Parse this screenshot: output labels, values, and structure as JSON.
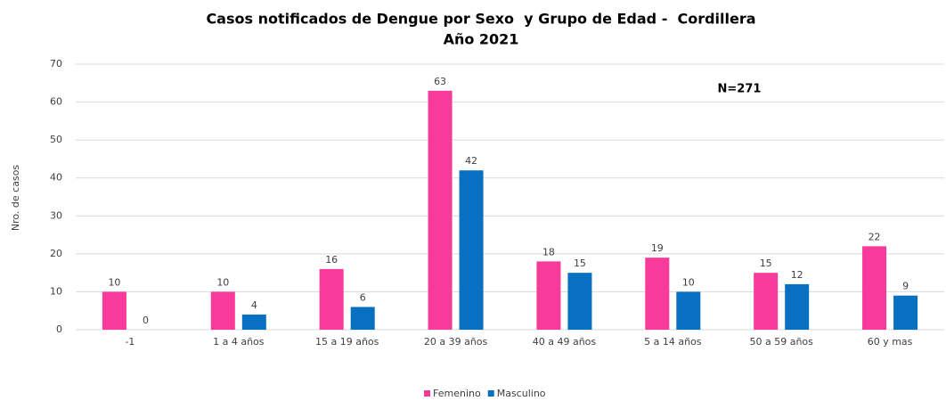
{
  "chart_data": {
    "type": "bar",
    "title": [
      "Casos notificados de Dengue por Sexo  y Grupo de Edad -  Cordillera",
      "Año 2021"
    ],
    "annotation": "N=271",
    "y_label": "Nro. de casos",
    "categories": [
      "-1",
      "1 a 4 años",
      "15 a 19 años",
      "20 a 39 años",
      "40 a 49 años",
      "5 a 14 años",
      "50 a 59 años",
      "60 y mas"
    ],
    "series": [
      {
        "name": "Femenino",
        "color": "#f83a9b",
        "values": [
          10,
          10,
          16,
          63,
          18,
          19,
          15,
          22
        ]
      },
      {
        "name": "Masculino",
        "color": "#0870c0",
        "values": [
          0,
          4,
          6,
          42,
          15,
          10,
          12,
          9
        ]
      }
    ],
    "ylim": [
      0,
      70
    ],
    "yticks": [
      0,
      10,
      20,
      30,
      40,
      50,
      60,
      70
    ],
    "grid": true,
    "legend": "bottom"
  }
}
